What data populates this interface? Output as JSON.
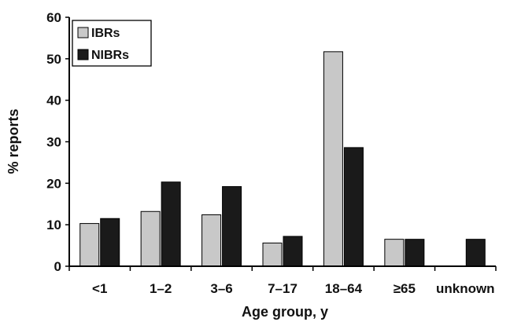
{
  "chart_data": {
    "type": "bar",
    "title": "",
    "xlabel": "Age group, y",
    "ylabel": "% reports",
    "ylim": [
      0,
      60
    ],
    "yticks": [
      "0",
      "10",
      "20",
      "30",
      "40",
      "50",
      "60"
    ],
    "categories": [
      "<1",
      "1–2",
      "3–6",
      "7–17",
      "18–64",
      "≥65",
      "unknown"
    ],
    "series": [
      {
        "name": "IBRs",
        "color": "#c8c8c8",
        "values": [
          10.3,
          13.2,
          12.4,
          5.6,
          51.7,
          6.5,
          0
        ]
      },
      {
        "name": "NIBRs",
        "color": "#1a1a1a",
        "values": [
          11.5,
          20.3,
          19.2,
          7.2,
          28.6,
          6.5,
          6.5
        ]
      }
    ],
    "legend_position": "top-left",
    "grid": false
  }
}
